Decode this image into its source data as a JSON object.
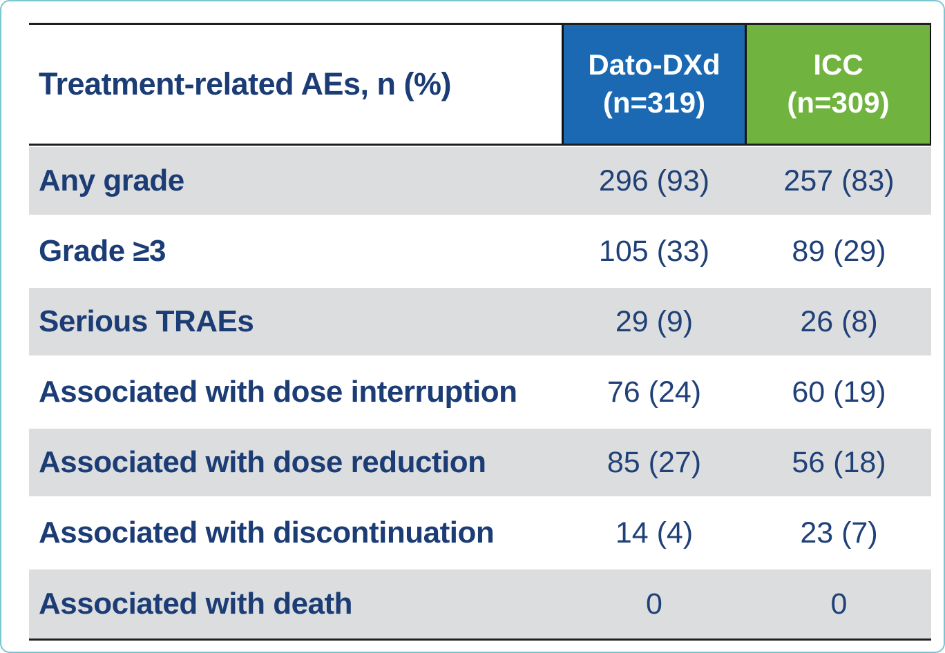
{
  "table": {
    "title": "Treatment-related AEs, n (%)",
    "columns": {
      "dato_name": "Dato-DXd",
      "dato_n": "(n=319)",
      "icc_name": "ICC",
      "icc_n": "(n=309)"
    },
    "rows": [
      {
        "label": "Any grade",
        "dato": "296 (93)",
        "icc": "257 (83)"
      },
      {
        "label": "Grade ≥3",
        "dato": "105 (33)",
        "icc": "89 (29)"
      },
      {
        "label": "Serious TRAEs",
        "dato": "29 (9)",
        "icc": "26 (8)"
      },
      {
        "label": "Associated with dose interruption",
        "dato": "76 (24)",
        "icc": "60 (19)"
      },
      {
        "label": "Associated with dose reduction",
        "dato": "85 (27)",
        "icc": "56 (18)"
      },
      {
        "label": "Associated with discontinuation",
        "dato": "14 (4)",
        "icc": "23 (7)"
      },
      {
        "label": "Associated with death",
        "dato": "0",
        "icc": "0"
      }
    ],
    "colors": {
      "dato_header_bg": "#1b69b2",
      "icc_header_bg": "#70b33e",
      "label_text": "#1b3c74",
      "value_text": "#1f4178",
      "shaded_row_bg": "#dcddde",
      "border_dark": "#1f1f1f",
      "frame_teal": "#79c6d1"
    }
  },
  "chart_data": {
    "type": "table",
    "title": "Treatment-related AEs, n (%)",
    "columns": [
      "Treatment-related AEs, n (%)",
      "Dato-DXd (n=319)",
      "ICC (n=309)"
    ],
    "rows": [
      [
        "Any grade",
        "296 (93)",
        "257 (83)"
      ],
      [
        "Grade ≥3",
        "105 (33)",
        "89 (29)"
      ],
      [
        "Serious TRAEs",
        "29 (9)",
        "26 (8)"
      ],
      [
        "Associated with dose interruption",
        "76 (24)",
        "60 (19)"
      ],
      [
        "Associated with dose reduction",
        "85 (27)",
        "56 (18)"
      ],
      [
        "Associated with discontinuation",
        "14 (4)",
        "23 (7)"
      ],
      [
        "Associated with death",
        "0",
        "0"
      ]
    ]
  }
}
